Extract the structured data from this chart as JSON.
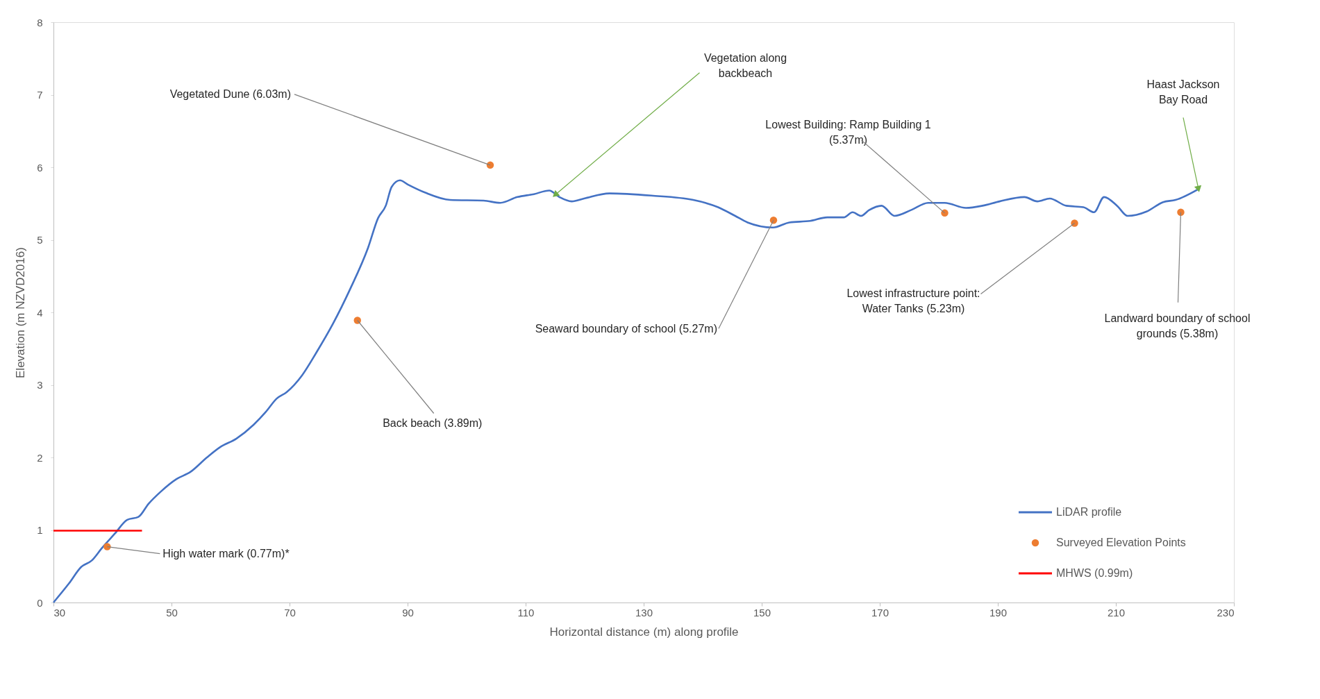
{
  "chart_data": {
    "type": "line",
    "xlabel": "Horizontal distance (m) along profile",
    "ylabel": "Elevation (m NZVD2016)",
    "xlim": [
      30,
      230
    ],
    "xticks": [
      30,
      50,
      70,
      90,
      110,
      130,
      150,
      170,
      190,
      210,
      230
    ],
    "ylim": [
      0,
      8
    ],
    "yticks": [
      0,
      1,
      2,
      3,
      4,
      5,
      6,
      7,
      8
    ],
    "grid": false,
    "legend": "bottom right",
    "series": [
      {
        "name": "LiDAR profile",
        "type": "line",
        "color": "#4472c4",
        "x": [
          30,
          32.6,
          34.7,
          36.5,
          38.2,
          40.4,
          42.5,
          44.4,
          46.1,
          48.2,
          50.8,
          53.2,
          56,
          58.2,
          61,
          63.9,
          66,
          67.8,
          69.5,
          72.1,
          74.5,
          77.4,
          80.2,
          83.3,
          85,
          86.3,
          87.3,
          88.7,
          90.1,
          93,
          97.2,
          102.9,
          105.7,
          108.6,
          111.4,
          114,
          115.7,
          117.8,
          119.9,
          124.2,
          131.3,
          138.4,
          142.6,
          145.5,
          147.6,
          151.9,
          154.7,
          158.2,
          161.1,
          163.9,
          165.4,
          166.8,
          168.2,
          170.3,
          172.5,
          175.3,
          178.2,
          181,
          184.6,
          187.4,
          190.3,
          194.5,
          196.7,
          198.8,
          201.6,
          204.5,
          206.3,
          208,
          210.2,
          212,
          215.2,
          218,
          220.1,
          224
        ],
        "values": [
          0,
          0.26,
          0.49,
          0.58,
          0.75,
          0.95,
          1.14,
          1.18,
          1.36,
          1.53,
          1.7,
          1.8,
          2.0,
          2.14,
          2.26,
          2.45,
          2.63,
          2.81,
          2.9,
          3.13,
          3.44,
          3.85,
          4.31,
          4.89,
          5.3,
          5.47,
          5.73,
          5.82,
          5.76,
          5.65,
          5.55,
          5.54,
          5.51,
          5.59,
          5.63,
          5.68,
          5.59,
          5.53,
          5.57,
          5.64,
          5.61,
          5.55,
          5.45,
          5.33,
          5.24,
          5.17,
          5.24,
          5.26,
          5.31,
          5.31,
          5.38,
          5.33,
          5.41,
          5.47,
          5.33,
          5.41,
          5.51,
          5.51,
          5.44,
          5.47,
          5.53,
          5.59,
          5.53,
          5.57,
          5.47,
          5.45,
          5.38,
          5.59,
          5.47,
          5.33,
          5.39,
          5.52,
          5.55,
          5.7
        ]
      },
      {
        "name": "Surveyed Elevation Points",
        "type": "scatter",
        "color": "#ed7d31",
        "x": [
          39.1,
          81.5,
          104,
          152,
          181,
          203,
          221
        ],
        "values": [
          0.77,
          3.89,
          6.03,
          5.27,
          5.37,
          5.23,
          5.38
        ]
      },
      {
        "name": "MHWS (0.99m)",
        "type": "line",
        "color": "#ff0000",
        "x": [
          30,
          45
        ],
        "values": [
          0.99,
          0.99
        ]
      }
    ],
    "annotations": [
      {
        "text": "High water mark (0.77m)*",
        "x": 39.1,
        "y": 0.77
      },
      {
        "text": "Back beach (3.89m)",
        "x": 81.5,
        "y": 3.89
      },
      {
        "text": "Vegetated Dune (6.03m)",
        "x": 104,
        "y": 6.03
      },
      {
        "text": "Vegetation along\nbackbeach",
        "x": 115,
        "y": 5.62
      },
      {
        "text": "Seaward boundary of school (5.27m)",
        "x": 152,
        "y": 5.27
      },
      {
        "text": "Lowest Building: Ramp Building 1\n(5.37m)",
        "x": 181,
        "y": 5.37
      },
      {
        "text": "Lowest infrastructure point:\nWater Tanks (5.23m)",
        "x": 203,
        "y": 5.23
      },
      {
        "text": "Landward boundary of school\ngrounds (5.38m)",
        "x": 221,
        "y": 5.38
      },
      {
        "text": "Haast Jackson\nBay Road",
        "x": 224,
        "y": 5.7
      }
    ]
  }
}
